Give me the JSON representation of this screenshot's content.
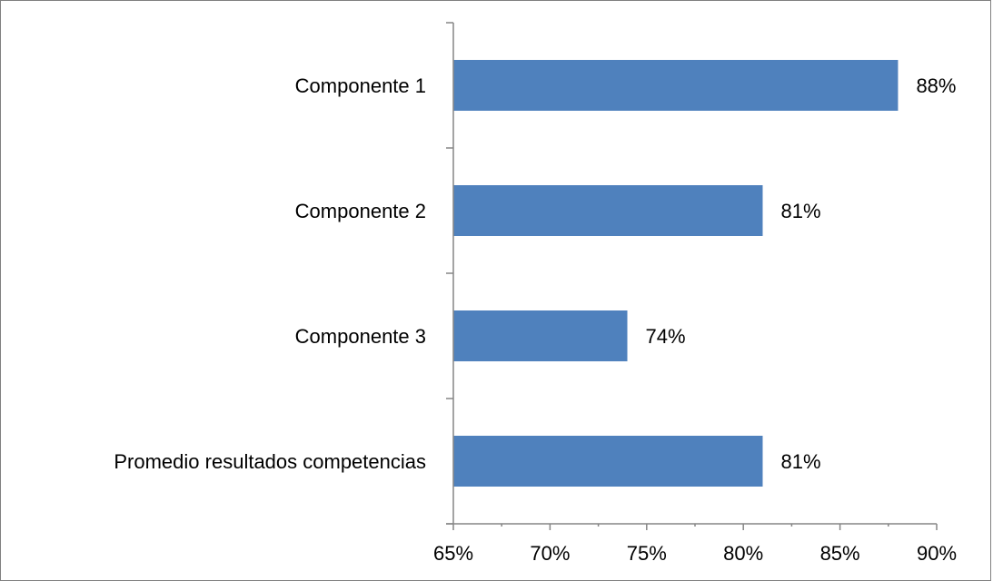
{
  "chart_data": {
    "type": "bar",
    "orientation": "horizontal",
    "categories": [
      "Componente 1",
      "Componente 2",
      "Componente 3",
      "Promedio resultados competencias"
    ],
    "values": [
      88,
      81,
      74,
      81
    ],
    "data_labels": [
      "88%",
      "81%",
      "74%",
      "81%"
    ],
    "xlim": [
      65,
      90
    ],
    "x_ticks": [
      65,
      70,
      75,
      80,
      85,
      90
    ],
    "x_tick_labels": [
      "65%",
      "70%",
      "75%",
      "80%",
      "85%",
      "90%"
    ],
    "title": "",
    "xlabel": "",
    "ylabel": "",
    "grid": false,
    "legend": "none",
    "bar_color": "#4F81BD"
  }
}
